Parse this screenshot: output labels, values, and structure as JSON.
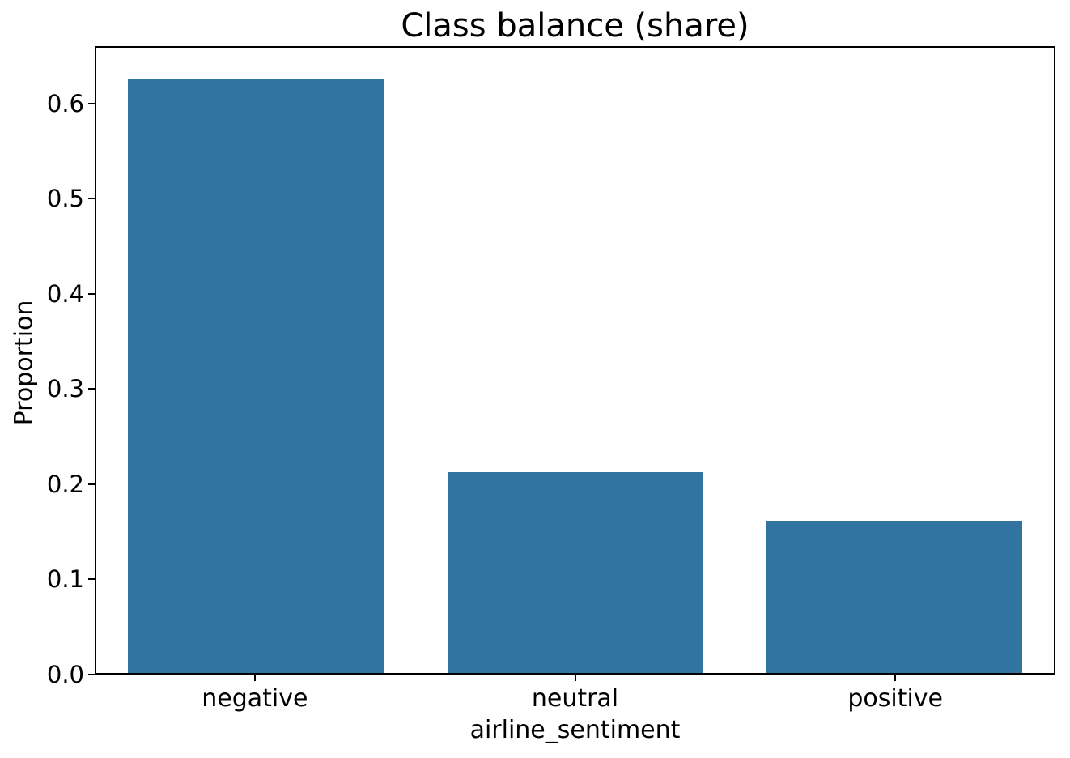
{
  "chart_data": {
    "type": "bar",
    "title": "Class balance (share)",
    "xlabel": "airline_sentiment",
    "ylabel": "Proportion",
    "categories": [
      "negative",
      "neutral",
      "positive"
    ],
    "values": [
      0.627,
      0.212,
      0.161
    ],
    "ylim": [
      0,
      0.66
    ],
    "yticks": [
      0.0,
      0.1,
      0.2,
      0.3,
      0.4,
      0.5,
      0.6
    ],
    "ytick_labels": [
      "0.0",
      "0.1",
      "0.2",
      "0.3",
      "0.4",
      "0.5",
      "0.6"
    ],
    "bar_color": "#3274a1",
    "bar_width_fraction": 0.8,
    "grid": false,
    "legend": "none",
    "spine_color": "#000000",
    "text_color": "#000000",
    "background_color": "#ffffff"
  }
}
